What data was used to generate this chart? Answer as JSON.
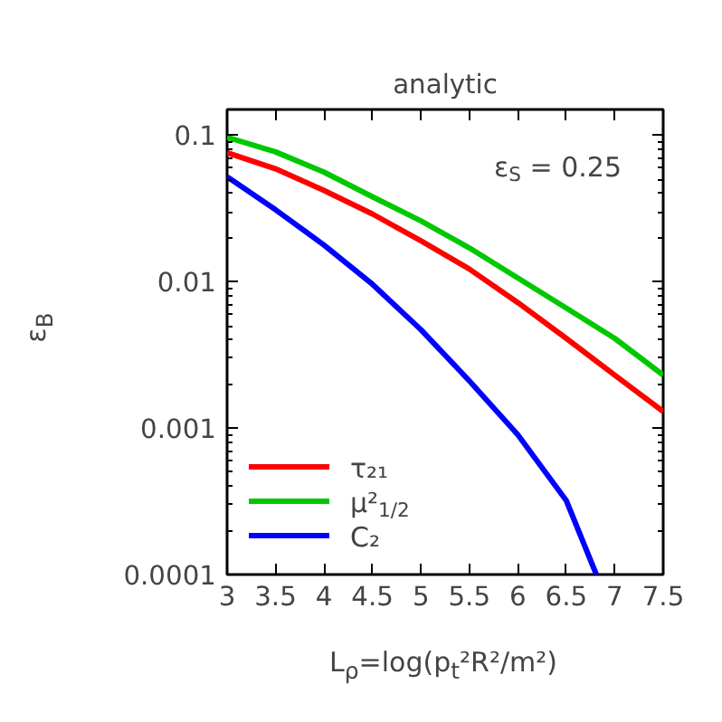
{
  "chart_data": {
    "type": "line",
    "title": "analytic",
    "xlabel": "L$_{ρ}$=log(p$_{t}$²R²/m²)",
    "ylabel": "ε$_{B}$",
    "annotations": [
      "ε$_{S}$ = 0.25"
    ],
    "log": "y",
    "xlim": [
      3,
      7.5
    ],
    "ylim": [
      0.0001,
      0.15
    ],
    "xticks": [
      3,
      3.5,
      4,
      4.5,
      5,
      5.5,
      6,
      6.5,
      7,
      7.5
    ],
    "yticks": [
      0.0001,
      0.001,
      0.01,
      0.1
    ],
    "grid": false,
    "legend": "bottom left",
    "line_style": "solid",
    "marker": "none",
    "series": [
      {
        "name": "τ₂₁",
        "color": "#ff0000",
        "x": [
          3,
          3.5,
          4,
          4.5,
          5,
          5.5,
          6,
          6.5,
          7,
          7.5
        ],
        "values": [
          0.076,
          0.059,
          0.042,
          0.029,
          0.019,
          0.0122,
          0.0072,
          0.0041,
          0.0023,
          0.0013
        ]
      },
      {
        "name": "μ²$_{1/2}$",
        "color": "#00c800",
        "x": [
          3,
          3.5,
          4,
          4.5,
          5,
          5.5,
          6,
          6.5,
          7,
          7.5
        ],
        "values": [
          0.097,
          0.077,
          0.056,
          0.038,
          0.026,
          0.017,
          0.0106,
          0.0066,
          0.0041,
          0.0023
        ]
      },
      {
        "name": "C₂",
        "color": "#0000ff",
        "x": [
          3,
          3.5,
          4,
          4.5,
          5,
          5.5,
          6,
          6.5,
          6.81
        ],
        "values": [
          0.052,
          0.031,
          0.0178,
          0.0096,
          0.0047,
          0.0021,
          0.0009,
          0.00032,
          0.0001
        ]
      }
    ]
  }
}
